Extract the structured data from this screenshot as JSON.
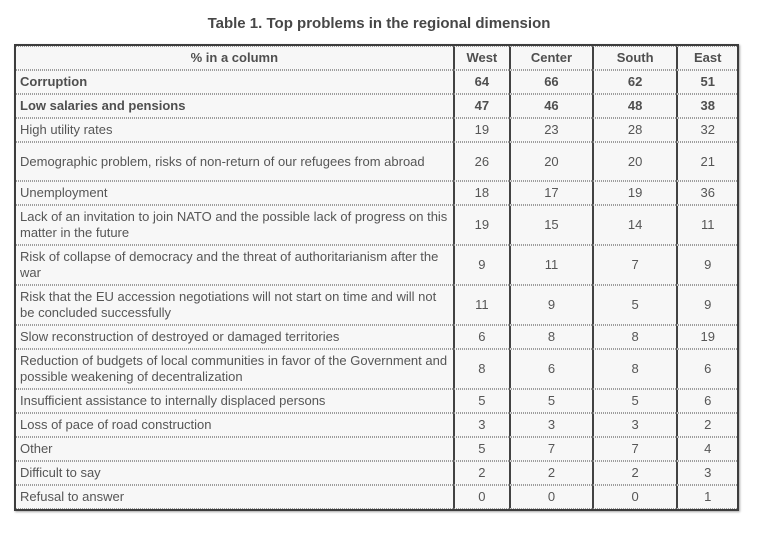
{
  "title": "Table 1. Top problems in the regional dimension",
  "table": {
    "header": {
      "label": "% in a column",
      "columns": [
        "West",
        "Center",
        "South",
        "East"
      ]
    },
    "rows": [
      {
        "label": "Corruption",
        "values": [
          64,
          66,
          62,
          51
        ],
        "bold": true
      },
      {
        "label": "Low salaries and pensions",
        "values": [
          47,
          46,
          48,
          38
        ],
        "bold": true
      },
      {
        "label": "High utility rates",
        "values": [
          19,
          23,
          28,
          32
        ],
        "bold": false
      },
      {
        "label": "Demographic problem, risks of non-return of our refugees from abroad",
        "values": [
          26,
          20,
          20,
          21
        ],
        "bold": false
      },
      {
        "label": "Unemployment",
        "values": [
          18,
          17,
          19,
          36
        ],
        "bold": false
      },
      {
        "label": "Lack of an invitation to join NATO and the possible lack of progress on this matter in the future",
        "values": [
          19,
          15,
          14,
          11
        ],
        "bold": false
      },
      {
        "label": "Risk of collapse of democracy and the threat of authoritarianism after the war",
        "values": [
          9,
          11,
          7,
          9
        ],
        "bold": false
      },
      {
        "label": "Risk that the EU accession negotiations will not start on time and will not be concluded successfully",
        "values": [
          11,
          9,
          5,
          9
        ],
        "bold": false
      },
      {
        "label": "Slow reconstruction of destroyed or damaged territories",
        "values": [
          6,
          8,
          8,
          19
        ],
        "bold": false
      },
      {
        "label": "Reduction of budgets of local communities in favor of the Government and possible weakening of decentralization",
        "values": [
          8,
          6,
          8,
          6
        ],
        "bold": false
      },
      {
        "label": "Insufficient assistance to internally displaced persons",
        "values": [
          5,
          5,
          5,
          6
        ],
        "bold": false
      },
      {
        "label": "Loss of pace of road construction",
        "values": [
          3,
          3,
          3,
          2
        ],
        "bold": false
      },
      {
        "label": "Other",
        "values": [
          5,
          7,
          7,
          4
        ],
        "bold": false
      },
      {
        "label": "Difficult to say",
        "values": [
          2,
          2,
          2,
          3
        ],
        "bold": false
      },
      {
        "label": "Refusal to answer",
        "values": [
          0,
          0,
          0,
          1
        ],
        "bold": false
      }
    ]
  },
  "colors": {
    "outer_border": "#3d3d3d",
    "vertical_border": "#434343",
    "dotted_separator": "#9d9d9d",
    "cell_background": "#f7f7f7",
    "text": "#565656"
  },
  "chart_data": {
    "type": "table",
    "title": "Table 1. Top problems in the regional dimension",
    "unit": "% in a column",
    "categories": [
      "West",
      "Center",
      "South",
      "East"
    ],
    "series": [
      {
        "name": "Corruption",
        "values": [
          64,
          66,
          62,
          51
        ]
      },
      {
        "name": "Low salaries and pensions",
        "values": [
          47,
          46,
          48,
          38
        ]
      },
      {
        "name": "High utility rates",
        "values": [
          19,
          23,
          28,
          32
        ]
      },
      {
        "name": "Demographic problem, risks of non-return of our refugees from abroad",
        "values": [
          26,
          20,
          20,
          21
        ]
      },
      {
        "name": "Unemployment",
        "values": [
          18,
          17,
          19,
          36
        ]
      },
      {
        "name": "Lack of an invitation to join NATO and the possible lack of progress on this matter in the future",
        "values": [
          19,
          15,
          14,
          11
        ]
      },
      {
        "name": "Risk of collapse of democracy and the threat of authoritarianism after the war",
        "values": [
          9,
          11,
          7,
          9
        ]
      },
      {
        "name": "Risk that the EU accession negotiations will not start on time and will not be concluded successfully",
        "values": [
          11,
          9,
          5,
          9
        ]
      },
      {
        "name": "Slow reconstruction of destroyed or damaged territories",
        "values": [
          6,
          8,
          8,
          19
        ]
      },
      {
        "name": "Reduction of budgets of local communities in favor of the Government and possible weakening of decentralization",
        "values": [
          8,
          6,
          8,
          6
        ]
      },
      {
        "name": "Insufficient assistance to internally displaced persons",
        "values": [
          5,
          5,
          5,
          6
        ]
      },
      {
        "name": "Loss of pace of road construction",
        "values": [
          3,
          3,
          3,
          2
        ]
      },
      {
        "name": "Other",
        "values": [
          5,
          7,
          7,
          4
        ]
      },
      {
        "name": "Difficult to say",
        "values": [
          2,
          2,
          2,
          3
        ]
      },
      {
        "name": "Refusal to answer",
        "values": [
          0,
          0,
          0,
          1
        ]
      }
    ]
  }
}
